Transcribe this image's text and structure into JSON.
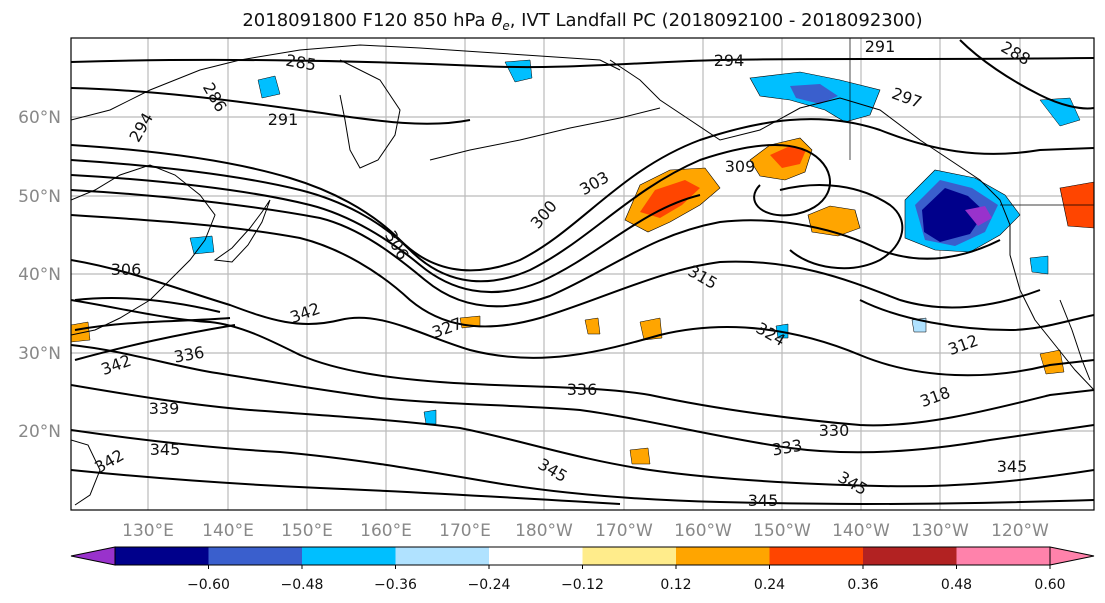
{
  "title": {
    "prefix": "2018091800 F120 850 hPa ",
    "theta": "θ",
    "theta_sub": "e",
    "suffix": ", IVT Landfall PC (2018092100 - 2018092300)"
  },
  "map": {
    "lon_labels": [
      "130°E",
      "140°E",
      "150°E",
      "160°E",
      "170°E",
      "180°W",
      "170°W",
      "160°W",
      "150°W",
      "140°W",
      "130°W",
      "120°W"
    ],
    "lat_labels": [
      "60°N",
      "50°N",
      "40°N",
      "30°N",
      "20°N"
    ],
    "contour_labels": [
      "285",
      "286",
      "291",
      "294",
      "294",
      "291",
      "288",
      "297",
      "309",
      "303",
      "300",
      "306",
      "306",
      "315",
      "342",
      "327",
      "324",
      "336",
      "339",
      "345",
      "342",
      "336",
      "345",
      "333",
      "330",
      "345",
      "345",
      "312",
      "318",
      "342",
      "345"
    ],
    "contour_color": "#000000",
    "grid": true
  },
  "colorbar": {
    "colors": [
      "#9932cc",
      "#00008b",
      "#3a5fcd",
      "#00bfff",
      "#b0e2ff",
      "#ffffff",
      "#ffec8b",
      "#ffa500",
      "#ff4500",
      "#b22222",
      "#ff82ab"
    ],
    "ticks": [
      "−0.60",
      "−0.48",
      "−0.36",
      "−0.24",
      "−0.12",
      "0.12",
      "0.24",
      "0.36",
      "0.48",
      "0.60"
    ],
    "extend": "both"
  }
}
